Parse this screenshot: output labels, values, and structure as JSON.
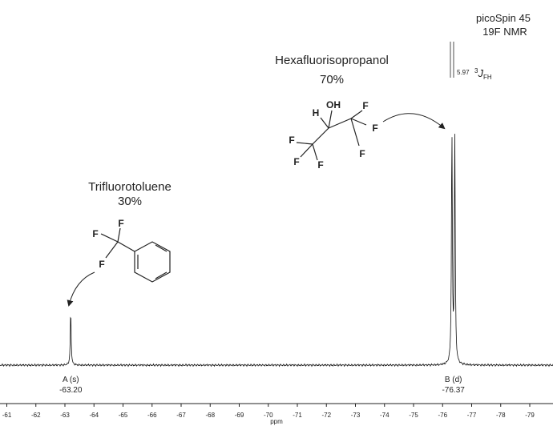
{
  "header": {
    "instrument": "picoSpin 45",
    "experiment": "19F NMR"
  },
  "coupling": {
    "value": "5.97",
    "symbol": "3",
    "italic": "J",
    "subscript": "FH"
  },
  "compounds": [
    {
      "name": "Trifluorotoluene",
      "percent": "30%"
    },
    {
      "name": "Hexafluorisopropanol",
      "percent": "70%"
    }
  ],
  "molecules": {
    "trifluorotoluene": {
      "atoms": [
        "F",
        "F",
        "F"
      ]
    },
    "hfip": {
      "atoms": [
        "OH",
        "H",
        "F",
        "F",
        "F",
        "F",
        "F",
        "F"
      ]
    }
  },
  "chart_data": {
    "type": "line",
    "title": "",
    "xlabel": "ppm",
    "ylabel": "",
    "xlim": [
      -60.9,
      -79.8
    ],
    "x_reversed": true,
    "x_ticks": [
      -61,
      -62,
      -63,
      -64,
      -65,
      -66,
      -67,
      -68,
      -69,
      -70,
      -71,
      -72,
      -73,
      -74,
      -75,
      -76,
      -77,
      -78,
      -79
    ],
    "grid": false,
    "peaks": [
      {
        "id": "A",
        "label": "A (s)",
        "shift_label": "-63.20",
        "multiplicity": "s",
        "shift": -63.2,
        "relative_height": 0.23
      },
      {
        "id": "B",
        "label": "B (d)",
        "shift_label": "-76.37",
        "multiplicity": "d",
        "shift": -76.37,
        "lines": [
          -76.32,
          -76.42
        ],
        "relative_height": 1.0
      }
    ]
  }
}
